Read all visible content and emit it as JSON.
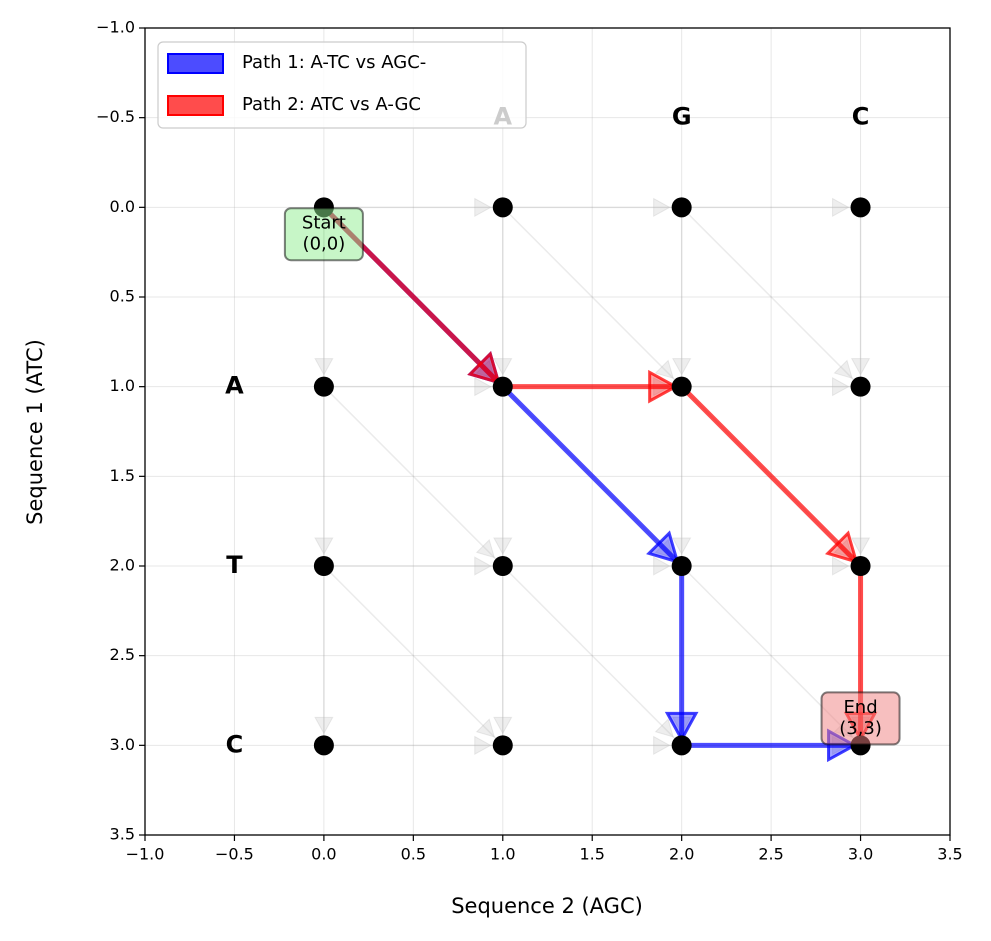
{
  "chart_data": {
    "type": "alignment-grid",
    "xlabel": "Sequence 2 (AGC)",
    "ylabel": "Sequence 1 (ATC)",
    "xlim": [
      -1,
      3.5
    ],
    "ylim": [
      3.5,
      -1
    ],
    "xticks": [
      {
        "value": -1,
        "label": "−1.0"
      },
      {
        "value": -0.5,
        "label": "−0.5"
      },
      {
        "value": 0,
        "label": "0.0"
      },
      0.5,
      {
        "value": 1,
        "label": "1.0"
      },
      1.5,
      {
        "value": 2,
        "label": "2.0"
      },
      2.5,
      {
        "value": 3,
        "label": "3.0"
      },
      3.5
    ],
    "yticks": [
      {
        "value": -1,
        "label": "−1.0"
      },
      {
        "value": -0.5,
        "label": "−0.5"
      },
      {
        "value": 0,
        "label": "0.0"
      },
      0.5,
      {
        "value": 1,
        "label": "1.0"
      },
      1.5,
      {
        "value": 2,
        "label": "2.0"
      },
      2.5,
      {
        "value": 3,
        "label": "3.0"
      },
      3.5
    ],
    "grid": true,
    "row_labels": [
      "A",
      "T",
      "C"
    ],
    "col_labels": [
      "A",
      "G",
      "C"
    ],
    "nodes": {
      "x": [
        0,
        1,
        2,
        3,
        0,
        1,
        2,
        3,
        0,
        1,
        2,
        3,
        0,
        1,
        2,
        3
      ],
      "y": [
        0,
        0,
        0,
        0,
        1,
        1,
        1,
        1,
        2,
        2,
        2,
        2,
        3,
        3,
        3,
        3
      ],
      "color": "#000000"
    },
    "series": [
      {
        "name": "Path 1: A-TC vs AGC-",
        "color": "#0000ff",
        "x": [
          0,
          1,
          2,
          2,
          3
        ],
        "y": [
          0,
          1,
          2,
          3,
          3
        ]
      },
      {
        "name": "Path 2: ATC vs A-GC",
        "color": "#ff0000",
        "x": [
          0,
          1,
          2,
          3,
          3
        ],
        "y": [
          0,
          1,
          1,
          2,
          3
        ]
      }
    ],
    "legend": "upper left",
    "annotations": [
      {
        "lines": [
          "Start",
          "(0,0)"
        ],
        "x": 0,
        "y": 0.15,
        "color": "#90ee90"
      },
      {
        "lines": [
          "End",
          "(3,3)"
        ],
        "x": 3,
        "y": 2.85,
        "color": "#f08080"
      }
    ]
  }
}
